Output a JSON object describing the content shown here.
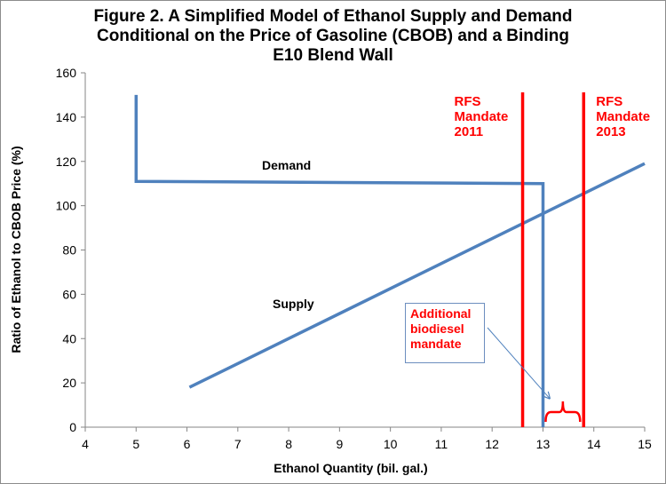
{
  "chart_data": {
    "type": "line",
    "title_lines": [
      "Figure 2. A Simplified Model of Ethanol Supply and Demand",
      "Conditional on the Price of Gasoline (CBOB) and a Binding",
      "E10 Blend Wall"
    ],
    "xlabel": "Ethanol Quantity (bil. gal.)",
    "ylabel": "Ratio of Ethanol to CBOB Price (%)",
    "xlim": [
      4,
      15
    ],
    "ylim": [
      0,
      160
    ],
    "x_ticks": [
      "4",
      "5",
      "6",
      "7",
      "8",
      "9",
      "10",
      "11",
      "12",
      "13",
      "14",
      "15"
    ],
    "y_ticks": [
      "0",
      "20",
      "40",
      "60",
      "80",
      "100",
      "120",
      "140",
      "160"
    ],
    "grid": false,
    "series": [
      {
        "name": "Demand",
        "color": "#4f81bd",
        "points": [
          [
            5,
            150
          ],
          [
            5,
            111
          ],
          [
            13,
            110
          ],
          [
            13,
            0
          ]
        ]
      },
      {
        "name": "Supply",
        "color": "#4f81bd",
        "points": [
          [
            6.05,
            18
          ],
          [
            15,
            119
          ]
        ]
      }
    ],
    "vertical_lines": [
      {
        "x": 12.6,
        "color": "#ff0000",
        "label_lines": [
          "RFS",
          "Mandate",
          "2011"
        ]
      },
      {
        "x": 13.8,
        "color": "#ff0000",
        "label_lines": [
          "RFS",
          "Mandate",
          "2013"
        ]
      }
    ],
    "annotations": {
      "demand_label": {
        "text": "Demand",
        "x": 8.2,
        "y": 116
      },
      "supply_label": {
        "text": "Supply",
        "x": 8.2,
        "y": 54
      },
      "callout_lines": [
        "Additional",
        "biodiesel",
        "mandate"
      ],
      "arrow_to": [
        13.2,
        15
      ],
      "brace_between": [
        13.0,
        13.8
      ]
    }
  }
}
